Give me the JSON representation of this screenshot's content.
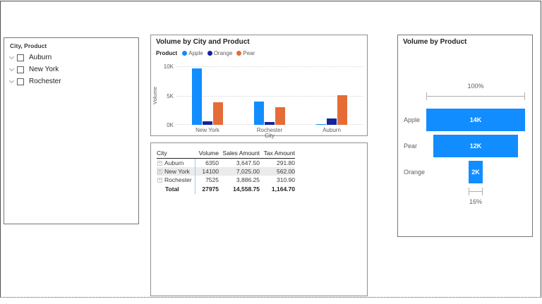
{
  "slicer": {
    "title": "City, Product",
    "items": [
      {
        "label": "Auburn",
        "checked": false
      },
      {
        "label": "New York",
        "checked": false
      },
      {
        "label": "Rochester",
        "checked": false
      }
    ]
  },
  "chart_data": [
    {
      "type": "bar",
      "title": "Volume by City and Product",
      "legend_title": "Product",
      "legend_position": "top",
      "categories": [
        "New York",
        "Rochester",
        "Auburn"
      ],
      "series": [
        {
          "name": "Apple",
          "color": "#118DFF",
          "values": [
            9600,
            4025,
            150
          ]
        },
        {
          "name": "Orange",
          "color": "#12239E",
          "values": [
            600,
            500,
            1100
          ]
        },
        {
          "name": "Pear",
          "color": "#E66C37",
          "values": [
            3900,
            3000,
            5100
          ]
        }
      ],
      "xlabel": "City",
      "ylabel": "Volume",
      "ylim": [
        0,
        10000
      ],
      "yticks": [
        "0K",
        "5K",
        "10K"
      ],
      "grid": "dotted horizontal"
    },
    {
      "type": "funnel",
      "title": "Volume by Product",
      "categories": [
        "Apple",
        "Pear",
        "Orange"
      ],
      "values": [
        14000,
        12000,
        2000
      ],
      "value_labels": [
        "14K",
        "12K",
        "2K"
      ],
      "top_percent_label": "100%",
      "bottom_percent_label": "16%",
      "bar_color": "#118DFF"
    }
  ],
  "table": {
    "columns": [
      "City",
      "Volume",
      "Sales Amount",
      "Tax Amount"
    ],
    "rows": [
      {
        "city": "Auburn",
        "volume": "6350",
        "sales": "3,647.50",
        "tax": "291.80"
      },
      {
        "city": "New York",
        "volume": "14100",
        "sales": "7,025.00",
        "tax": "562.00"
      },
      {
        "city": "Rochester",
        "volume": "7525",
        "sales": "3,886.25",
        "tax": "310.90"
      }
    ],
    "total": {
      "city": "Total",
      "volume": "27975",
      "sales": "14,558.75",
      "tax": "1,164.70"
    }
  },
  "colors": {
    "accent_blue": "#118DFF",
    "dark_blue": "#12239E",
    "orange_red": "#E66C37",
    "axis_text": "#605E5C",
    "title_text": "#252423",
    "band_row": "#ebebeb",
    "separator_blue": "#A6C7E8"
  }
}
